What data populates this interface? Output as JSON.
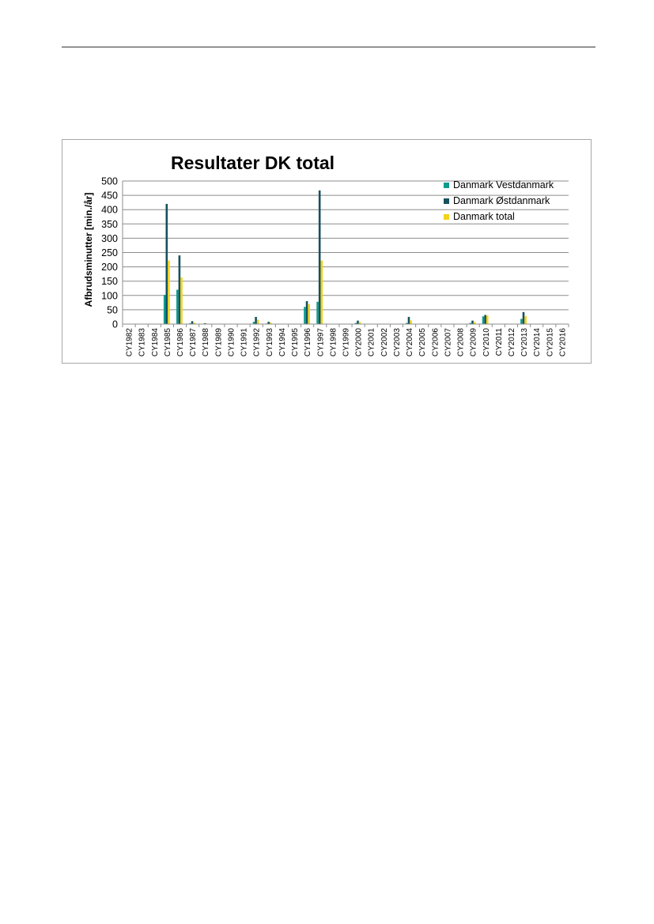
{
  "chart_data": {
    "type": "bar",
    "title": "Resultater DK total",
    "xlabel": "",
    "ylabel": "Afbrudsminutter [min./år]",
    "ylim": [
      0,
      500
    ],
    "yticks": [
      0,
      50,
      100,
      150,
      200,
      250,
      300,
      350,
      400,
      450,
      500
    ],
    "grid": true,
    "legend_position": "top-right",
    "categories": [
      "CY1982",
      "CY1983",
      "CY1984",
      "CY1985",
      "CY1986",
      "CY1987",
      "CY1988",
      "CY1989",
      "CY1990",
      "CY1991",
      "CY1992",
      "CY1993",
      "CY1994",
      "CY1995",
      "CY1996",
      "CY1997",
      "CY1998",
      "CY1999",
      "CY2000",
      "CY2001",
      "CY2002",
      "CY2003",
      "CY2004",
      "CY2005",
      "CY2006",
      "CY2007",
      "CY2008",
      "CY2009",
      "CY2010",
      "CY2011",
      "CY2012",
      "CY2013",
      "CY2014",
      "CY2015",
      "CY2016"
    ],
    "series": [
      {
        "name": "Danmark Vestdanmark",
        "color": "#0f9b8e",
        "values": [
          0,
          0,
          0,
          102,
          120,
          3,
          0,
          0,
          0,
          0,
          8,
          2,
          0,
          0,
          60,
          78,
          0,
          0,
          4,
          0,
          0,
          0,
          4,
          0,
          0,
          0,
          0,
          4,
          27,
          0,
          0,
          18,
          0,
          0,
          0
        ]
      },
      {
        "name": "Danmark Østdanmark",
        "color": "#17515e",
        "values": [
          0,
          0,
          0,
          420,
          240,
          10,
          3,
          0,
          0,
          0,
          25,
          8,
          0,
          0,
          80,
          467,
          0,
          0,
          12,
          0,
          0,
          0,
          25,
          0,
          0,
          0,
          0,
          12,
          32,
          0,
          0,
          42,
          0,
          0,
          0
        ]
      },
      {
        "name": "Danmark total",
        "color": "#f2d21b",
        "values": [
          0,
          0,
          0,
          222,
          163,
          5,
          2,
          0,
          0,
          0,
          15,
          5,
          0,
          0,
          70,
          222,
          0,
          0,
          7,
          0,
          0,
          0,
          13,
          0,
          0,
          0,
          0,
          7,
          30,
          0,
          0,
          28,
          0,
          0,
          0
        ]
      }
    ]
  }
}
